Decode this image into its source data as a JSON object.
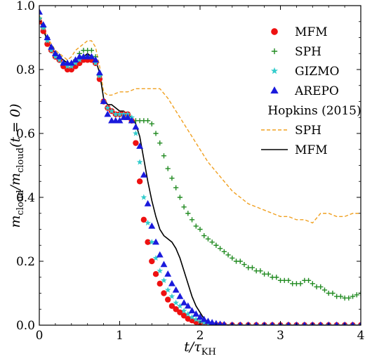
{
  "chart_data": {
    "type": "scatter",
    "xlabel": "t/τ_KH",
    "ylabel": "m_cloud/m_cloud(t = 0)",
    "xlim": [
      0,
      4
    ],
    "ylim": [
      0,
      1.0
    ],
    "xticks": [
      "0",
      "1",
      "2",
      "3",
      "4"
    ],
    "yticks": [
      "0.0",
      "0.2",
      "0.4",
      "0.6",
      "0.8",
      "1.0"
    ],
    "legend_position": "top-right",
    "legend_header": "Hopkins (2015)",
    "series": [
      {
        "name": "MFM",
        "kind": "marker",
        "marker": "circle",
        "color": "#ee1111",
        "x": [
          0,
          0.05,
          0.1,
          0.15,
          0.2,
          0.25,
          0.3,
          0.35,
          0.4,
          0.45,
          0.5,
          0.55,
          0.6,
          0.65,
          0.7,
          0.75,
          0.8,
          0.85,
          0.9,
          0.95,
          1.0,
          1.05,
          1.1,
          1.15,
          1.2,
          1.25,
          1.3,
          1.35,
          1.4,
          1.45,
          1.5,
          1.55,
          1.6,
          1.65,
          1.7,
          1.75,
          1.8,
          1.85,
          1.9,
          1.95,
          2.0,
          2.05,
          2.1,
          2.15,
          2.2,
          2.25,
          2.3,
          2.4,
          2.5,
          2.6,
          2.7,
          2.8,
          2.9,
          3.0,
          3.1,
          3.2,
          3.3,
          3.4,
          3.5,
          3.6,
          3.7,
          3.8,
          3.9,
          4.0
        ],
        "y": [
          0.95,
          0.92,
          0.88,
          0.86,
          0.84,
          0.83,
          0.81,
          0.8,
          0.8,
          0.81,
          0.82,
          0.83,
          0.83,
          0.83,
          0.82,
          0.77,
          0.7,
          0.68,
          0.67,
          0.66,
          0.66,
          0.66,
          0.66,
          0.64,
          0.57,
          0.45,
          0.33,
          0.26,
          0.2,
          0.16,
          0.13,
          0.1,
          0.08,
          0.06,
          0.05,
          0.04,
          0.03,
          0.02,
          0.015,
          0.01,
          0.006,
          0.004,
          0.003,
          0.002,
          0.001,
          0.001,
          0,
          0,
          0,
          0,
          0,
          0,
          0,
          0,
          0,
          0,
          0,
          0,
          0,
          0,
          0,
          0,
          0,
          0
        ]
      },
      {
        "name": "SPH",
        "kind": "marker",
        "marker": "plus",
        "color": "#228b22",
        "x": [
          0,
          0.05,
          0.1,
          0.15,
          0.2,
          0.25,
          0.3,
          0.35,
          0.4,
          0.45,
          0.5,
          0.55,
          0.6,
          0.65,
          0.7,
          0.75,
          0.8,
          0.85,
          0.9,
          0.95,
          1.0,
          1.05,
          1.1,
          1.15,
          1.2,
          1.25,
          1.3,
          1.35,
          1.4,
          1.45,
          1.5,
          1.55,
          1.6,
          1.65,
          1.7,
          1.75,
          1.8,
          1.85,
          1.9,
          1.95,
          2.0,
          2.05,
          2.1,
          2.15,
          2.2,
          2.25,
          2.3,
          2.35,
          2.4,
          2.45,
          2.5,
          2.55,
          2.6,
          2.65,
          2.7,
          2.75,
          2.8,
          2.85,
          2.9,
          2.95,
          3.0,
          3.05,
          3.1,
          3.15,
          3.2,
          3.25,
          3.3,
          3.35,
          3.4,
          3.45,
          3.5,
          3.55,
          3.6,
          3.65,
          3.7,
          3.75,
          3.8,
          3.85,
          3.9,
          3.95,
          4.0
        ],
        "y": [
          0.96,
          0.93,
          0.9,
          0.87,
          0.85,
          0.84,
          0.82,
          0.82,
          0.82,
          0.83,
          0.85,
          0.86,
          0.86,
          0.86,
          0.84,
          0.78,
          0.7,
          0.68,
          0.67,
          0.66,
          0.66,
          0.66,
          0.65,
          0.64,
          0.64,
          0.64,
          0.64,
          0.64,
          0.63,
          0.6,
          0.57,
          0.53,
          0.49,
          0.46,
          0.43,
          0.4,
          0.37,
          0.35,
          0.33,
          0.31,
          0.3,
          0.28,
          0.27,
          0.26,
          0.25,
          0.24,
          0.23,
          0.22,
          0.21,
          0.2,
          0.2,
          0.19,
          0.18,
          0.18,
          0.17,
          0.17,
          0.16,
          0.16,
          0.15,
          0.15,
          0.14,
          0.14,
          0.14,
          0.13,
          0.13,
          0.13,
          0.14,
          0.14,
          0.13,
          0.12,
          0.12,
          0.11,
          0.1,
          0.1,
          0.09,
          0.09,
          0.085,
          0.085,
          0.09,
          0.095,
          0.1
        ]
      },
      {
        "name": "GIZMO",
        "kind": "marker",
        "marker": "star",
        "color": "#33cccc",
        "x": [
          0,
          0.05,
          0.1,
          0.15,
          0.2,
          0.25,
          0.3,
          0.35,
          0.4,
          0.45,
          0.5,
          0.55,
          0.6,
          0.65,
          0.7,
          0.75,
          0.8,
          0.85,
          0.9,
          0.95,
          1.0,
          1.05,
          1.1,
          1.15,
          1.2,
          1.25,
          1.3,
          1.35,
          1.4,
          1.45,
          1.5,
          1.55,
          1.6,
          1.65,
          1.7,
          1.75,
          1.8,
          1.85,
          1.9,
          1.95,
          2.0,
          2.05,
          2.1,
          2.15,
          2.2,
          2.25,
          2.3,
          2.4,
          2.5,
          2.6,
          2.7,
          2.8,
          2.9,
          3.0,
          3.1,
          3.2,
          3.3,
          3.4,
          3.5,
          3.6,
          3.7,
          3.8,
          3.9,
          4.0
        ],
        "y": [
          0.96,
          0.93,
          0.89,
          0.86,
          0.84,
          0.83,
          0.82,
          0.81,
          0.81,
          0.82,
          0.83,
          0.84,
          0.84,
          0.84,
          0.82,
          0.78,
          0.7,
          0.68,
          0.67,
          0.66,
          0.66,
          0.66,
          0.66,
          0.65,
          0.6,
          0.51,
          0.4,
          0.32,
          0.26,
          0.21,
          0.17,
          0.14,
          0.11,
          0.09,
          0.07,
          0.06,
          0.045,
          0.035,
          0.025,
          0.018,
          0.012,
          0.008,
          0.005,
          0.003,
          0.002,
          0.001,
          0,
          0,
          0,
          0,
          0,
          0,
          0,
          0,
          0,
          0,
          0,
          0,
          0,
          0,
          0,
          0,
          0,
          0
        ]
      },
      {
        "name": "AREPO",
        "kind": "marker",
        "marker": "triangle",
        "color": "#1a1adc",
        "x": [
          0,
          0.05,
          0.1,
          0.15,
          0.2,
          0.25,
          0.3,
          0.35,
          0.4,
          0.45,
          0.5,
          0.55,
          0.6,
          0.65,
          0.7,
          0.75,
          0.8,
          0.85,
          0.9,
          0.95,
          1.0,
          1.05,
          1.1,
          1.15,
          1.2,
          1.25,
          1.3,
          1.35,
          1.4,
          1.45,
          1.5,
          1.55,
          1.6,
          1.65,
          1.7,
          1.75,
          1.8,
          1.85,
          1.9,
          1.95,
          2.0,
          2.05,
          2.1,
          2.15,
          2.2,
          2.25,
          2.3,
          2.4,
          2.5,
          2.6,
          2.7,
          2.8,
          2.9,
          3.0,
          3.1,
          3.2,
          3.3,
          3.4,
          3.5,
          3.6,
          3.7,
          3.8,
          3.9,
          4.0
        ],
        "y": [
          0.98,
          0.94,
          0.9,
          0.87,
          0.85,
          0.84,
          0.82,
          0.82,
          0.82,
          0.83,
          0.84,
          0.84,
          0.84,
          0.84,
          0.83,
          0.79,
          0.7,
          0.66,
          0.64,
          0.64,
          0.64,
          0.65,
          0.65,
          0.64,
          0.62,
          0.56,
          0.47,
          0.38,
          0.31,
          0.26,
          0.22,
          0.19,
          0.16,
          0.13,
          0.11,
          0.09,
          0.07,
          0.06,
          0.045,
          0.035,
          0.025,
          0.018,
          0.012,
          0.008,
          0.005,
          0.003,
          0.002,
          0,
          0,
          0,
          0,
          0,
          0,
          0,
          0,
          0,
          0,
          0,
          0,
          0,
          0,
          0,
          0,
          0
        ]
      },
      {
        "name": "SPH",
        "kind": "line",
        "dash": "dashed",
        "color": "#f0a020",
        "x": [
          0,
          0.1,
          0.2,
          0.3,
          0.35,
          0.4,
          0.45,
          0.5,
          0.55,
          0.6,
          0.65,
          0.7,
          0.75,
          0.8,
          0.85,
          0.9,
          1.0,
          1.1,
          1.2,
          1.3,
          1.4,
          1.5,
          1.6,
          1.7,
          1.8,
          1.9,
          2.0,
          2.1,
          2.2,
          2.3,
          2.4,
          2.5,
          2.6,
          2.7,
          2.8,
          2.9,
          3.0,
          3.1,
          3.2,
          3.3,
          3.4,
          3.5,
          3.6,
          3.7,
          3.8,
          3.9,
          4.0
        ],
        "y": [
          0.97,
          0.9,
          0.86,
          0.84,
          0.83,
          0.84,
          0.86,
          0.87,
          0.88,
          0.89,
          0.89,
          0.87,
          0.81,
          0.73,
          0.72,
          0.72,
          0.73,
          0.73,
          0.74,
          0.74,
          0.74,
          0.74,
          0.71,
          0.67,
          0.63,
          0.59,
          0.55,
          0.51,
          0.48,
          0.45,
          0.42,
          0.4,
          0.38,
          0.37,
          0.36,
          0.35,
          0.34,
          0.34,
          0.33,
          0.33,
          0.32,
          0.35,
          0.35,
          0.34,
          0.34,
          0.35,
          0.35
        ]
      },
      {
        "name": "MFM",
        "kind": "line",
        "dash": "solid",
        "color": "#000000",
        "x": [
          0,
          0.1,
          0.2,
          0.3,
          0.35,
          0.4,
          0.45,
          0.5,
          0.55,
          0.6,
          0.65,
          0.7,
          0.75,
          0.8,
          0.85,
          0.9,
          0.95,
          1.0,
          1.05,
          1.1,
          1.15,
          1.2,
          1.25,
          1.3,
          1.35,
          1.4,
          1.45,
          1.5,
          1.55,
          1.6,
          1.65,
          1.7,
          1.75,
          1.8,
          1.85,
          1.9,
          1.95,
          2.0,
          2.05,
          2.1,
          2.2,
          2.3,
          2.5,
          3.0,
          3.5,
          4.0
        ],
        "y": [
          0.96,
          0.89,
          0.85,
          0.83,
          0.82,
          0.82,
          0.83,
          0.84,
          0.84,
          0.85,
          0.84,
          0.83,
          0.79,
          0.71,
          0.69,
          0.69,
          0.68,
          0.67,
          0.67,
          0.66,
          0.65,
          0.63,
          0.59,
          0.52,
          0.45,
          0.39,
          0.34,
          0.3,
          0.28,
          0.27,
          0.26,
          0.24,
          0.21,
          0.17,
          0.13,
          0.09,
          0.06,
          0.04,
          0.02,
          0.01,
          0.003,
          0.001,
          0,
          0,
          0,
          0
        ]
      }
    ]
  }
}
